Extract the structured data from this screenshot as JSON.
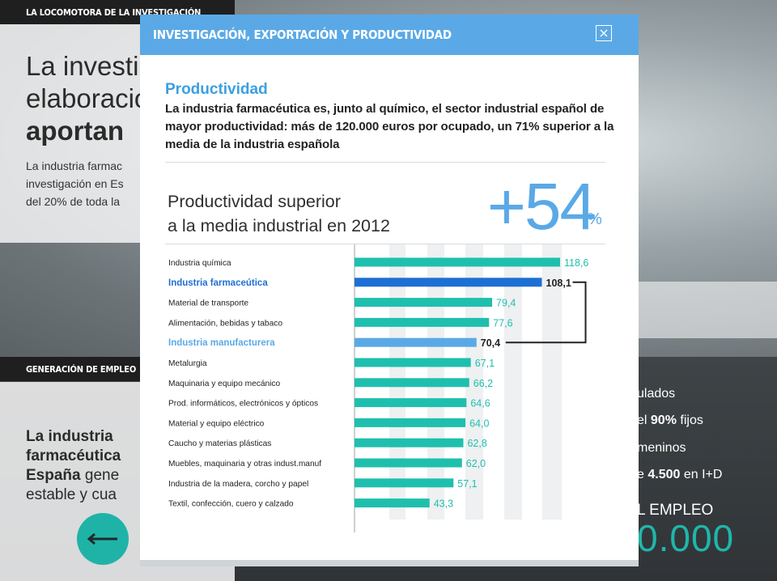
{
  "background": {
    "section_top_tag": "LA LOCOMOTORA DE LA INVESTIGACIÓN",
    "headline_line1": "La investi",
    "headline_line2": "elaboració",
    "headline_line3_bold": "aportan",
    "paragraph_line1": "La industria farmac",
    "paragraph_line2": "investigación en Es",
    "paragraph_line3": "del 20% de toda la",
    "section_mid_tag": "GENERACIÓN DE EMPLEO",
    "h2_line1_bold": "La industria",
    "h2_line2_bold": "farmacéutica",
    "h2_line3_bold": "España",
    "h2_line3_rest": " gene",
    "h2_line4": "estable y cua",
    "right_line1": "ulados",
    "right_line2_pre": "el ",
    "right_line2_bold": "90%",
    "right_line2_post": " fijos",
    "right_line3": "meninos",
    "right_line4_pre": "e ",
    "right_line4_bold": "4.500",
    "right_line4_post": " en I+D",
    "empleo_label": "L EMPLEO",
    "big_number": "0.000",
    "back_icon": "arrow-left-icon"
  },
  "modal": {
    "title": "INVESTIGACIÓN, EXPORTACIÓN Y PRODUCTIVIDAD",
    "close_icon": "close-icon",
    "section_title": "Productividad",
    "section_desc": "La industria farmacéutica es, junto al químico, el sector industrial español de mayor productividad: más de 120.000 euros por ocupado, un 71% superior a la media de la industria española",
    "headline_line1": "Productividad superior",
    "headline_line2": "a la media industrial en 2012",
    "big_value": "+54",
    "big_unit": "%"
  },
  "chart_data": {
    "type": "bar",
    "orientation": "horizontal",
    "categories": [
      "Industria química",
      "Industria farmaceútica",
      "Material de transporte",
      "Alimentación, bebidas y tabaco",
      "Industria manufacturera",
      "Metalurgia",
      "Maquinaria y equipo mecánico",
      "Prod. informáticos, electrónicos y ópticos",
      "Material y equipo eléctrico",
      "Caucho y materias plásticas",
      "Muebles, maquinaria y otras indust.manuf",
      "Industria de la madera, corcho y papel",
      "Textil, confección, cuero y calzado"
    ],
    "values": [
      118.6,
      108.1,
      79.4,
      77.6,
      70.4,
      67.1,
      66.2,
      64.6,
      64.0,
      62.8,
      62.0,
      57.1,
      43.3
    ],
    "value_labels": [
      "118,6",
      "108,1",
      "79,4",
      "77,6",
      "70,4",
      "67,1",
      "66,2",
      "64,6",
      "64,0",
      "62,8",
      "62,0",
      "57,1",
      "43,3"
    ],
    "highlight": [
      false,
      true,
      false,
      false,
      true,
      false,
      false,
      false,
      false,
      false,
      false,
      false,
      false
    ],
    "colors": {
      "default": "#1fbfae",
      "primary": "#1e6fd4",
      "secondary": "#5aa9e6",
      "band": "#eef0f1"
    },
    "xlim": [
      0,
      118.6
    ],
    "bracket_between": [
      "Industria farmaceútica",
      "Industria manufacturera"
    ]
  }
}
